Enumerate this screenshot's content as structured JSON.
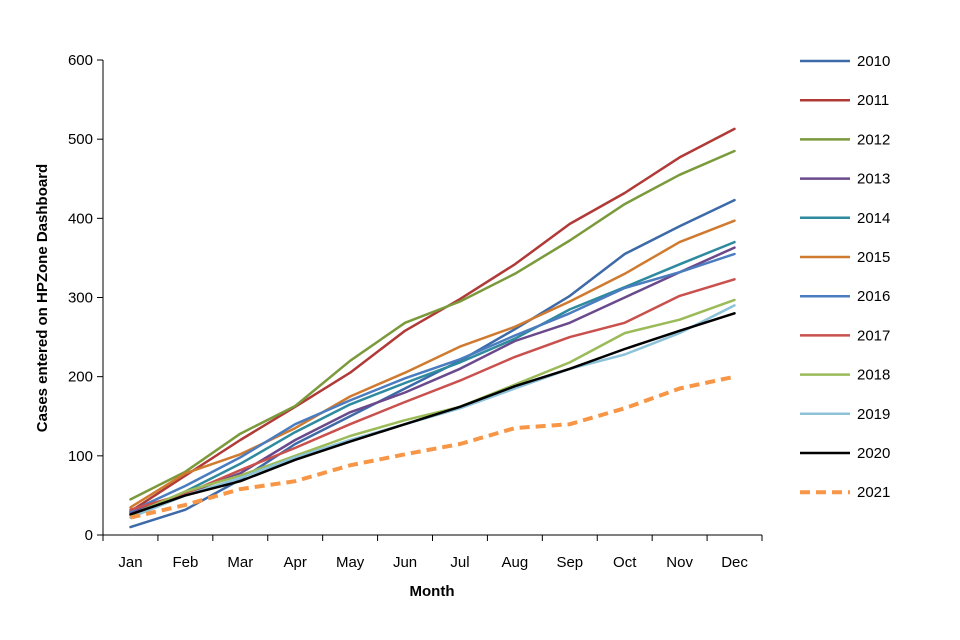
{
  "chart_data": {
    "type": "line",
    "title": "",
    "xlabel": "Month",
    "ylabel": "Cases entered on HPZone Dashboard",
    "categories": [
      "Jan",
      "Feb",
      "Mar",
      "Apr",
      "May",
      "Jun",
      "Jul",
      "Aug",
      "Sep",
      "Oct",
      "Nov",
      "Dec"
    ],
    "ylim": [
      0,
      600
    ],
    "yticks": [
      0,
      100,
      200,
      300,
      400,
      500,
      600
    ],
    "ytick_labels": [
      "0",
      "100",
      "200",
      "300",
      "400",
      "500",
      "600"
    ],
    "legend_position": "right",
    "series": [
      {
        "name": "2010",
        "color": "#3D6AA8",
        "dashed": false,
        "values": [
          10,
          32,
          70,
          115,
          150,
          185,
          220,
          260,
          302,
          355,
          390,
          423
        ]
      },
      {
        "name": "2011",
        "color": "#B03A37",
        "dashed": false,
        "values": [
          30,
          75,
          120,
          162,
          205,
          258,
          298,
          342,
          393,
          432,
          477,
          513
        ]
      },
      {
        "name": "2012",
        "color": "#7A9A3C",
        "dashed": false,
        "values": [
          45,
          80,
          128,
          163,
          220,
          268,
          295,
          330,
          372,
          418,
          455,
          485
        ]
      },
      {
        "name": "2013",
        "color": "#6A4A8C",
        "dashed": false,
        "values": [
          28,
          52,
          78,
          120,
          155,
          180,
          210,
          245,
          268,
          300,
          332,
          363
        ]
      },
      {
        "name": "2014",
        "color": "#2E8A9E",
        "dashed": false,
        "values": [
          25,
          55,
          90,
          130,
          165,
          192,
          218,
          248,
          285,
          313,
          342,
          370
        ]
      },
      {
        "name": "2015",
        "color": "#D07A30",
        "dashed": false,
        "values": [
          35,
          78,
          102,
          135,
          175,
          205,
          238,
          263,
          295,
          330,
          370,
          397
        ]
      },
      {
        "name": "2016",
        "color": "#4A7CBF",
        "dashed": false,
        "values": [
          30,
          62,
          98,
          140,
          170,
          198,
          222,
          252,
          280,
          312,
          332,
          355
        ]
      },
      {
        "name": "2017",
        "color": "#C9504D",
        "dashed": false,
        "values": [
          32,
          52,
          82,
          110,
          140,
          168,
          195,
          225,
          250,
          268,
          302,
          323
        ]
      },
      {
        "name": "2018",
        "color": "#9BBB59",
        "dashed": false,
        "values": [
          25,
          55,
          75,
          100,
          125,
          145,
          162,
          190,
          218,
          255,
          272,
          297
        ]
      },
      {
        "name": "2019",
        "color": "#8DC3D9",
        "dashed": false,
        "values": [
          22,
          50,
          72,
          98,
          120,
          140,
          160,
          185,
          210,
          228,
          255,
          290
        ]
      },
      {
        "name": "2020",
        "color": "#000000",
        "dashed": false,
        "values": [
          26,
          50,
          68,
          95,
          118,
          140,
          162,
          188,
          210,
          235,
          258,
          280
        ]
      },
      {
        "name": "2021",
        "color": "#F79646",
        "dashed": true,
        "values": [
          22,
          38,
          58,
          68,
          88,
          102,
          115,
          135,
          140,
          160,
          185,
          200
        ]
      }
    ]
  }
}
